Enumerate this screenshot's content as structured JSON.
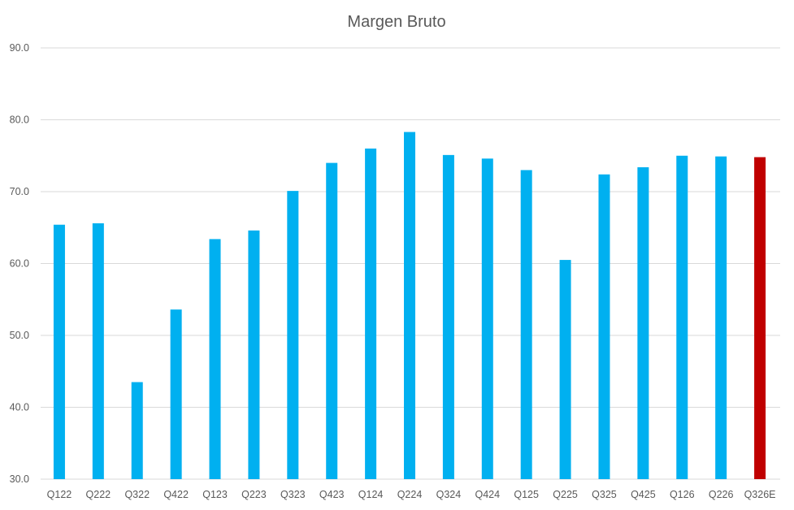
{
  "chart_data": {
    "type": "bar",
    "title": "Margen Bruto",
    "xlabel": "",
    "ylabel": "",
    "ylim": [
      30,
      90
    ],
    "yticks": [
      "30.0",
      "40.0",
      "50.0",
      "60.0",
      "70.0",
      "80.0",
      "90.0"
    ],
    "grid": true,
    "legend": "none",
    "categories": [
      "Q122",
      "Q222",
      "Q322",
      "Q422",
      "Q123",
      "Q223",
      "Q323",
      "Q423",
      "Q124",
      "Q224",
      "Q324",
      "Q424",
      "Q125",
      "Q225",
      "Q325",
      "Q425",
      "Q126",
      "Q226",
      "Q326E"
    ],
    "values": [
      65.4,
      65.6,
      43.5,
      53.6,
      63.4,
      64.6,
      70.1,
      74.0,
      76.0,
      78.3,
      75.1,
      74.6,
      73.0,
      60.5,
      72.4,
      73.4,
      75.0,
      74.9,
      74.8
    ],
    "colors": {
      "actual": "#00b0f0",
      "estimate": "#c00000"
    },
    "estimate_categories": [
      "Q326E"
    ]
  }
}
